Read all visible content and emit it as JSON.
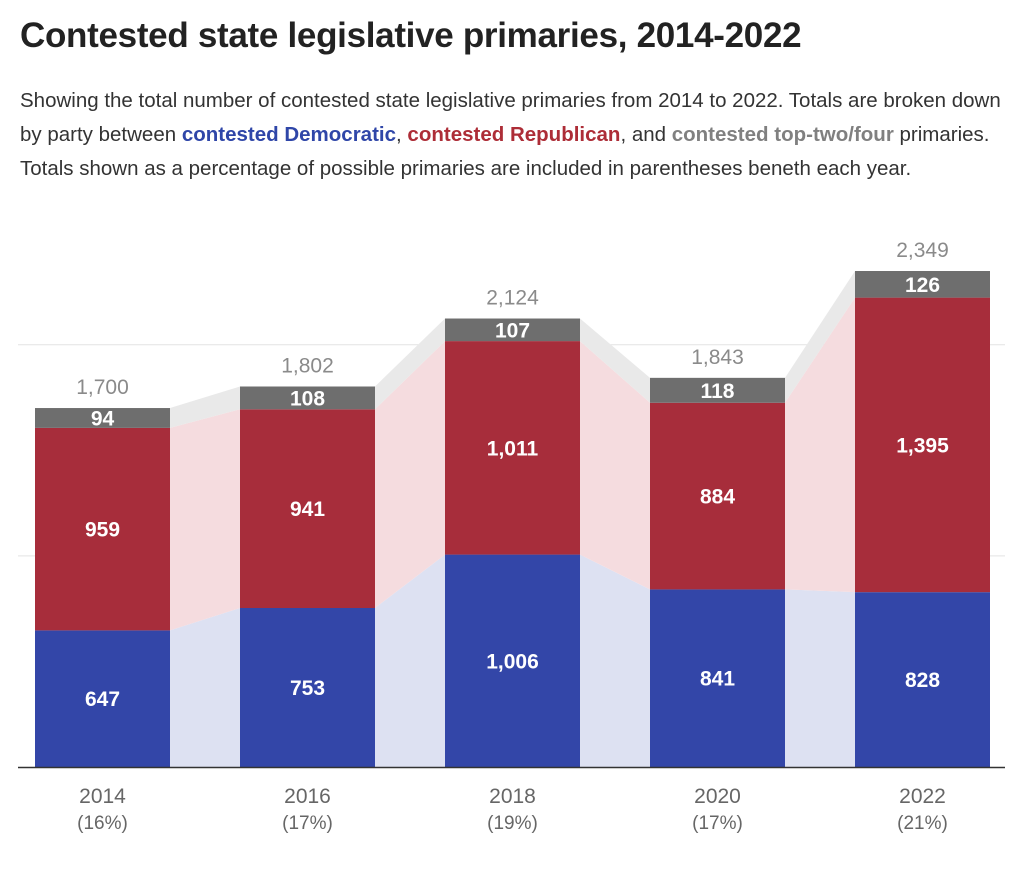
{
  "title": "Contested state legislative primaries, 2014-2022",
  "description": {
    "part1": "Showing the total number of contested state legislative primaries from 2014 to 2022. Totals are broken down by party between ",
    "dem_link": "contested Democratic",
    "part2": ", ",
    "rep_link": "contested Republican",
    "part3": ", and ",
    "top_link": "contested top-two/four",
    "part4": " primaries. Totals shown as a percentage of possible primaries are included in parentheses beneth each year."
  },
  "colors": {
    "democratic": "#3346a8",
    "republican": "#a72d3b",
    "toptwo": "#6e6e6e",
    "dem_band": "#dde1f2",
    "rep_band": "#f5dcdf",
    "top_band": "#e9e9e9"
  },
  "chart_data": {
    "type": "bar",
    "stacked": true,
    "categories": [
      "2014",
      "2016",
      "2018",
      "2020",
      "2022"
    ],
    "percent_labels": [
      "(16%)",
      "(17%)",
      "(19%)",
      "(17%)",
      "(21%)"
    ],
    "series": [
      {
        "name": "contested Democratic",
        "key": "democratic",
        "values": [
          647,
          753,
          1006,
          841,
          828
        ]
      },
      {
        "name": "contested Republican",
        "key": "republican",
        "values": [
          959,
          941,
          1011,
          884,
          1395
        ]
      },
      {
        "name": "contested top-two/four",
        "key": "toptwo",
        "values": [
          94,
          108,
          107,
          118,
          126
        ]
      }
    ],
    "totals": [
      1700,
      1802,
      2124,
      1843,
      2349
    ],
    "ylim": [
      0,
      2349
    ],
    "grid": true
  }
}
